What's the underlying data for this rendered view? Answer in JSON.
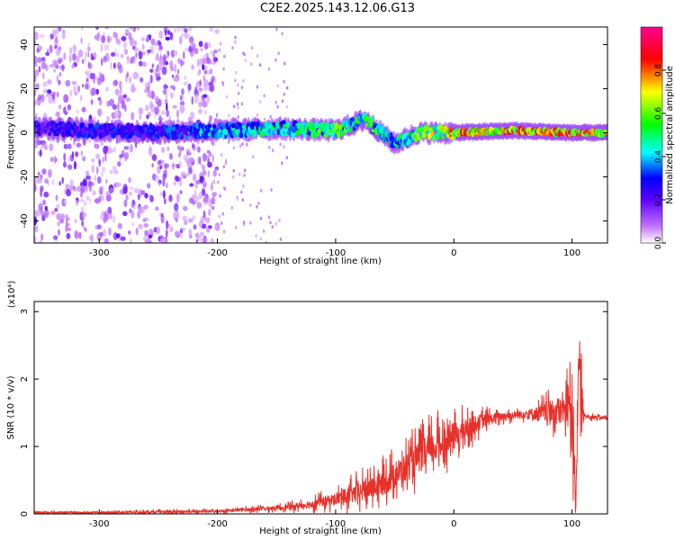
{
  "title": "C2E2.2025.143.12.06.G13",
  "chart_data": [
    {
      "type": "heatmap",
      "xlabel": "Height of straight line (km)",
      "ylabel": "Frequency (Hz)",
      "xlim": [
        -355,
        130
      ],
      "ylim": [
        -50,
        48
      ],
      "xticks": [
        -300,
        -200,
        -100,
        0,
        100
      ],
      "yticks": [
        -40,
        -20,
        0,
        20,
        40
      ],
      "colorbar": {
        "label": "Normalized spectral amplitude",
        "range": [
          0,
          1
        ],
        "ticks": [
          0.0,
          0.2,
          0.4,
          0.6,
          0.8
        ],
        "tick_labels": [
          "0.0",
          "0.2",
          "0.4",
          "0.6",
          "0.8"
        ],
        "colormap": [
          "#ffffff",
          "#8a00ff",
          "#0000ff",
          "#00ffff",
          "#00ff00",
          "#ffff00",
          "#ff0000",
          "#ff00a0"
        ]
      },
      "ridge": [
        {
          "x": -350,
          "freq": 2,
          "amplitude": 0.25
        },
        {
          "x": -300,
          "freq": 1,
          "amplitude": 0.3
        },
        {
          "x": -250,
          "freq": 0,
          "amplitude": 0.3
        },
        {
          "x": -200,
          "freq": 1,
          "amplitude": 0.4
        },
        {
          "x": -150,
          "freq": 2,
          "amplitude": 0.5
        },
        {
          "x": -100,
          "freq": 1,
          "amplitude": 0.55
        },
        {
          "x": -75,
          "freq": 6,
          "amplitude": 0.55
        },
        {
          "x": -50,
          "freq": -5,
          "amplitude": 0.45
        },
        {
          "x": -30,
          "freq": 0,
          "amplitude": 0.6
        },
        {
          "x": 0,
          "freq": 0,
          "amplitude": 0.75
        },
        {
          "x": 50,
          "freq": 1,
          "amplitude": 0.8
        },
        {
          "x": 100,
          "freq": 0,
          "amplitude": 0.85
        },
        {
          "x": 130,
          "freq": 0,
          "amplitude": 0.8
        }
      ]
    },
    {
      "type": "line",
      "xlabel": "Height of straight line (km)",
      "ylabel": "SNR (10 * v/v)",
      "y_multiplier": "(x10⁴)",
      "xlim": [
        -355,
        130
      ],
      "ylim": [
        0,
        3.15
      ],
      "xticks": [
        -300,
        -200,
        -100,
        0,
        100
      ],
      "yticks": [
        0,
        1,
        2,
        3
      ],
      "color": "#e8302a",
      "series": [
        {
          "x": [
            -355,
            -300,
            -250,
            -200,
            -180,
            -160,
            -140,
            -120,
            -100,
            -80,
            -60,
            -40,
            -20,
            0,
            20,
            40,
            60,
            80,
            95,
            100,
            103,
            106,
            110,
            130
          ],
          "y": [
            0.02,
            0.02,
            0.03,
            0.04,
            0.06,
            0.08,
            0.1,
            0.15,
            0.22,
            0.32,
            0.45,
            0.7,
            0.95,
            1.15,
            1.35,
            1.45,
            1.48,
            1.5,
            1.55,
            1.8,
            0.2,
            2.2,
            1.45,
            1.42
          ],
          "noise": [
            0.02,
            0.02,
            0.03,
            0.03,
            0.04,
            0.05,
            0.06,
            0.1,
            0.15,
            0.25,
            0.3,
            0.35,
            0.4,
            0.35,
            0.2,
            0.1,
            0.1,
            0.25,
            0.4,
            1.2,
            0.2,
            1.0,
            0.05,
            0.04
          ]
        }
      ]
    }
  ]
}
